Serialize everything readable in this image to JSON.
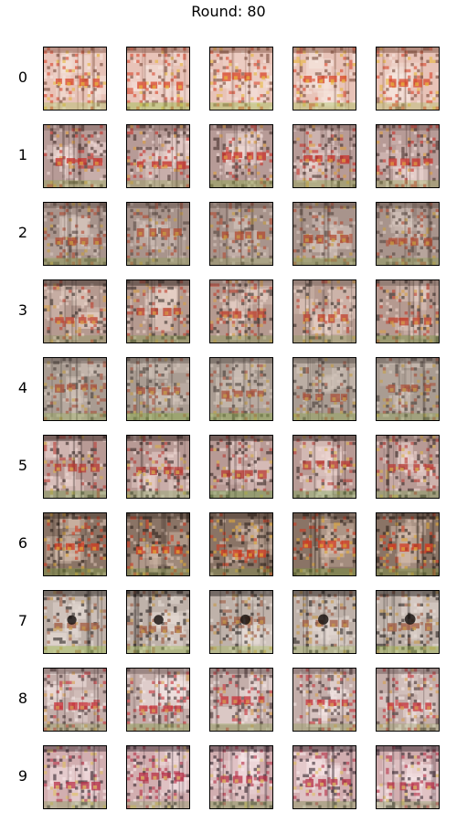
{
  "title": "Round: 80",
  "rows": [
    {
      "label": "0",
      "style": "warm-grid",
      "tiles": [
        "a",
        "b",
        "c",
        "d",
        "e"
      ]
    },
    {
      "label": "1",
      "style": "red-band",
      "tiles": [
        "a",
        "b",
        "c",
        "d",
        "e"
      ]
    },
    {
      "label": "2",
      "style": "gray-grid",
      "tiles": [
        "a",
        "b",
        "c",
        "d",
        "e"
      ]
    },
    {
      "label": "3",
      "style": "dark-edges",
      "tiles": [
        "a",
        "b",
        "c",
        "d",
        "e"
      ]
    },
    {
      "label": "4",
      "style": "muted-green",
      "tiles": [
        "a",
        "b",
        "c",
        "d",
        "e"
      ]
    },
    {
      "label": "5",
      "style": "dark-columns",
      "tiles": [
        "a",
        "b",
        "c",
        "d",
        "e"
      ]
    },
    {
      "label": "6",
      "style": "dense-red",
      "tiles": [
        "a",
        "b",
        "c",
        "d",
        "e"
      ]
    },
    {
      "label": "7",
      "style": "gray-spot",
      "tiles": [
        "a",
        "b",
        "c",
        "d",
        "e"
      ]
    },
    {
      "label": "8",
      "style": "pale-band",
      "tiles": [
        "a",
        "b",
        "c",
        "d",
        "e"
      ]
    },
    {
      "label": "9",
      "style": "pink-dark",
      "tiles": [
        "a",
        "b",
        "c",
        "d",
        "e"
      ]
    }
  ]
}
